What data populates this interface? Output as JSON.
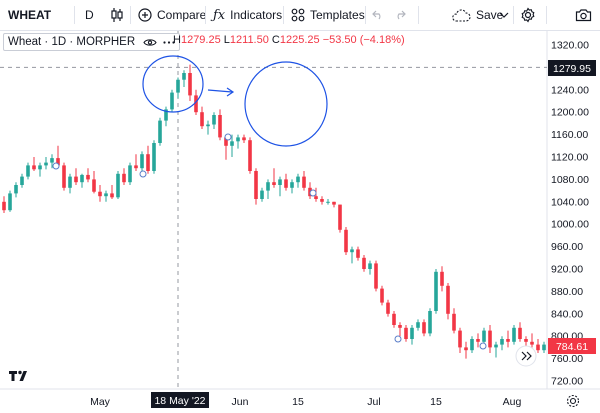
{
  "toolbar": {
    "symbol": "WHEAT",
    "interval": "D",
    "compare_label": "Compare",
    "indicators_label": "Indicators",
    "templates_label": "Templates",
    "save_label": "Save"
  },
  "legend": {
    "title": "Wheat · 1D · MORPHER",
    "ohlc": {
      "o_label": "O",
      "h_label": "H",
      "h_value": "1279.25",
      "l_label": "L",
      "l_value": "1211.50",
      "c_label": "C",
      "c_value": "1225.25",
      "change": "−53.50 (−4.18%)"
    }
  },
  "colors": {
    "up": "#26a69a",
    "down": "#f23645",
    "annotation": "#1e53e5",
    "axis_text": "#131722",
    "crosshair": "#9598a1"
  },
  "icons": [
    "candles-icon",
    "plus-circle-icon",
    "fx-icon",
    "templates-grid-icon",
    "undo-icon",
    "redo-icon",
    "cloud-icon",
    "chevron-down-icon",
    "gear-icon",
    "camera-icon",
    "eye-icon",
    "more-icon",
    "gear-icon",
    "double-chevron-icon",
    "tv-logo-icon"
  ],
  "chart_data": {
    "type": "candlestick",
    "title": "Wheat · 1D · MORPHER",
    "y_ticks": [
      "1320.00",
      "1240.00",
      "1200.00",
      "1160.00",
      "1120.00",
      "1080.00",
      "1040.00",
      "1000.00",
      "960.00",
      "920.00",
      "880.00",
      "840.00",
      "800.00",
      "760.00",
      "720.00"
    ],
    "x_ticks": [
      "May",
      "Jun",
      "15",
      "Jul",
      "15",
      "Aug"
    ],
    "crosshair_date": "18 May '22",
    "crosshair_price": "1279.95",
    "last_price": "784.61",
    "ylim": [
      700,
      1335
    ],
    "candles": [
      [
        1040,
        1050,
        1020,
        1025
      ],
      [
        1025,
        1060,
        1022,
        1055
      ],
      [
        1055,
        1075,
        1048,
        1070
      ],
      [
        1070,
        1090,
        1065,
        1085
      ],
      [
        1085,
        1110,
        1080,
        1105
      ],
      [
        1105,
        1120,
        1095,
        1098
      ],
      [
        1098,
        1110,
        1085,
        1105
      ],
      [
        1105,
        1120,
        1098,
        1110
      ],
      [
        1110,
        1125,
        1100,
        1118
      ],
      [
        1118,
        1140,
        1110,
        1105
      ],
      [
        1105,
        1110,
        1060,
        1065
      ],
      [
        1065,
        1090,
        1055,
        1085
      ],
      [
        1085,
        1100,
        1070,
        1075
      ],
      [
        1075,
        1090,
        1065,
        1088
      ],
      [
        1088,
        1100,
        1075,
        1080
      ],
      [
        1080,
        1095,
        1055,
        1058
      ],
      [
        1058,
        1070,
        1040,
        1050
      ],
      [
        1050,
        1060,
        1040,
        1055
      ],
      [
        1055,
        1070,
        1045,
        1048
      ],
      [
        1048,
        1095,
        1045,
        1090
      ],
      [
        1090,
        1100,
        1070,
        1075
      ],
      [
        1075,
        1110,
        1070,
        1105
      ],
      [
        1105,
        1125,
        1095,
        1100
      ],
      [
        1100,
        1130,
        1095,
        1125
      ],
      [
        1125,
        1140,
        1090,
        1095
      ],
      [
        1095,
        1150,
        1090,
        1145
      ],
      [
        1145,
        1190,
        1140,
        1185
      ],
      [
        1185,
        1210,
        1175,
        1205
      ],
      [
        1205,
        1240,
        1200,
        1235
      ],
      [
        1235,
        1262,
        1225,
        1258
      ],
      [
        1258,
        1275,
        1245,
        1270
      ],
      [
        1270,
        1285,
        1220,
        1230
      ],
      [
        1230,
        1240,
        1195,
        1200
      ],
      [
        1200,
        1210,
        1170,
        1175
      ],
      [
        1175,
        1185,
        1160,
        1178
      ],
      [
        1178,
        1200,
        1170,
        1195
      ],
      [
        1195,
        1205,
        1150,
        1155
      ],
      [
        1155,
        1160,
        1115,
        1140
      ],
      [
        1140,
        1160,
        1120,
        1148
      ],
      [
        1148,
        1160,
        1135,
        1155
      ],
      [
        1155,
        1160,
        1145,
        1150
      ],
      [
        1150,
        1155,
        1090,
        1095
      ],
      [
        1095,
        1100,
        1035,
        1045
      ],
      [
        1045,
        1065,
        1040,
        1060
      ],
      [
        1060,
        1080,
        1045,
        1075
      ],
      [
        1075,
        1100,
        1065,
        1070
      ],
      [
        1070,
        1085,
        1050,
        1080
      ],
      [
        1080,
        1090,
        1060,
        1065
      ],
      [
        1065,
        1080,
        1055,
        1075
      ],
      [
        1075,
        1090,
        1065,
        1085
      ],
      [
        1085,
        1095,
        1060,
        1065
      ],
      [
        1065,
        1075,
        1045,
        1050
      ],
      [
        1050,
        1065,
        1040,
        1045
      ],
      [
        1045,
        1050,
        1035,
        1040
      ],
      [
        1040,
        1045,
        1035,
        1040
      ],
      [
        1040,
        1040,
        1030,
        1035
      ],
      [
        1035,
        1035,
        985,
        990
      ],
      [
        990,
        995,
        945,
        950
      ],
      [
        950,
        960,
        930,
        955
      ],
      [
        955,
        960,
        935,
        940
      ],
      [
        940,
        945,
        915,
        920
      ],
      [
        920,
        935,
        910,
        930
      ],
      [
        930,
        935,
        880,
        885
      ],
      [
        885,
        890,
        855,
        860
      ],
      [
        860,
        865,
        835,
        840
      ],
      [
        840,
        845,
        815,
        820
      ],
      [
        820,
        825,
        800,
        815
      ],
      [
        815,
        820,
        790,
        795
      ],
      [
        795,
        820,
        785,
        815
      ],
      [
        815,
        830,
        810,
        825
      ],
      [
        825,
        830,
        800,
        805
      ],
      [
        805,
        850,
        800,
        845
      ],
      [
        845,
        920,
        840,
        915
      ],
      [
        915,
        925,
        880,
        890
      ],
      [
        890,
        895,
        830,
        840
      ],
      [
        840,
        850,
        805,
        810
      ],
      [
        810,
        815,
        770,
        780
      ],
      [
        780,
        790,
        760,
        775
      ],
      [
        775,
        800,
        770,
        795
      ],
      [
        795,
        805,
        780,
        790
      ],
      [
        790,
        815,
        785,
        810
      ],
      [
        810,
        820,
        770,
        780
      ],
      [
        780,
        790,
        762,
        785
      ],
      [
        785,
        800,
        775,
        795
      ],
      [
        795,
        810,
        780,
        790
      ],
      [
        790,
        820,
        785,
        815
      ],
      [
        815,
        825,
        790,
        795
      ],
      [
        795,
        800,
        775,
        790
      ],
      [
        790,
        805,
        780,
        785
      ],
      [
        785,
        795,
        770,
        775
      ],
      [
        775,
        790,
        770,
        785
      ]
    ],
    "annotations": [
      "circle around May peak",
      "arrow",
      "circle around June peak"
    ]
  }
}
